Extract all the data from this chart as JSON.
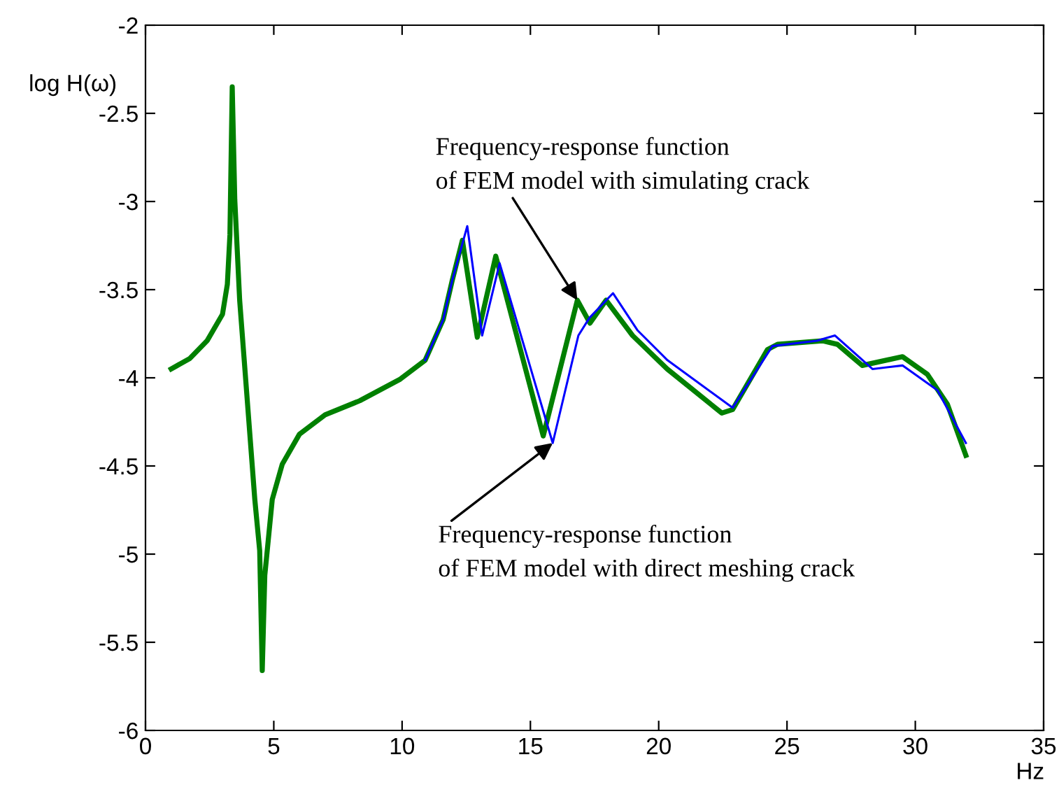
{
  "chart_data": {
    "type": "line",
    "xlabel": "Hz",
    "ylabel": "log H(ω)",
    "xlim": [
      0,
      35
    ],
    "xticks": [
      0,
      5,
      10,
      15,
      20,
      25,
      30,
      35
    ],
    "ylim": [
      -6,
      -2
    ],
    "yticks": [
      -6,
      -5.5,
      -5,
      -4.5,
      -4,
      -3.5,
      -3,
      -2.5,
      -2
    ],
    "grid": false,
    "legend": false,
    "marker": "none",
    "line_style": "solid",
    "series": [
      {
        "color": "#008000",
        "x": [
          1.0,
          1.73,
          2.4,
          3.0,
          3.19,
          3.29,
          3.38,
          3.48,
          3.67,
          4.26,
          4.45,
          4.55,
          4.65,
          4.94,
          5.33,
          6.0,
          7.0,
          8.35,
          9.9,
          10.9,
          11.6,
          11.95,
          12.35,
          12.93,
          13.65,
          15.5,
          16.83,
          17.32,
          17.95,
          18.98,
          20.33,
          22.46,
          22.88,
          24.24,
          24.63,
          26.38,
          26.96,
          27.93,
          29.5,
          30.47,
          31.25,
          31.97
        ],
        "values": [
          -3.95,
          -3.89,
          -3.79,
          -3.64,
          -3.47,
          -3.19,
          -2.35,
          -2.99,
          -3.56,
          -4.69,
          -4.98,
          -5.66,
          -5.12,
          -4.69,
          -4.49,
          -4.32,
          -4.21,
          -4.13,
          -4.01,
          -3.9,
          -3.67,
          -3.45,
          -3.22,
          -3.77,
          -3.31,
          -4.33,
          -3.56,
          -3.69,
          -3.56,
          -3.76,
          -3.95,
          -4.2,
          -4.18,
          -3.84,
          -3.81,
          -3.79,
          -3.81,
          -3.93,
          -3.88,
          -3.98,
          -4.15,
          -4.44
        ]
      },
      {
        "color": "#0000ff",
        "x": [
          10.9,
          11.6,
          11.95,
          12.54,
          13.12,
          13.8,
          15.87,
          16.87,
          17.3,
          18.22,
          19.17,
          20.34,
          22.88,
          24.43,
          26.17,
          26.87,
          28.33,
          29.5,
          30.86,
          31.97
        ],
        "values": [
          -3.9,
          -3.67,
          -3.45,
          -3.14,
          -3.76,
          -3.35,
          -4.37,
          -3.76,
          -3.66,
          -3.52,
          -3.73,
          -3.9,
          -4.17,
          -3.82,
          -3.79,
          -3.76,
          -3.95,
          -3.93,
          -4.07,
          -4.37
        ]
      }
    ],
    "annotations": [
      {
        "text": "Frequency-response function\nof FEM model with simulating crack",
        "x": 16.83,
        "y": -3.56
      },
      {
        "text": "Frequency-response function\nof FEM model with direct meshing crack",
        "x": 15.87,
        "y": -4.37
      }
    ]
  }
}
